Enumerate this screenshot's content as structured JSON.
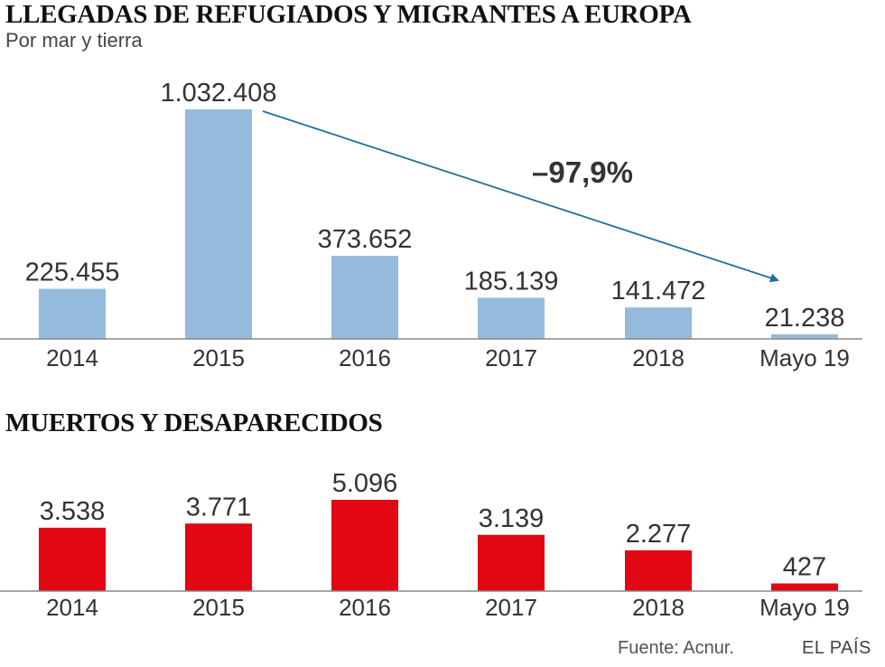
{
  "chart_data": [
    {
      "type": "bar",
      "title": "LLEGADAS DE REFUGIADOS Y MIGRANTES A EUROPA",
      "subtitle": "Por mar y tierra",
      "categories": [
        "2014",
        "2015",
        "2016",
        "2017",
        "2018",
        "Mayo 19"
      ],
      "values": [
        225455,
        1032408,
        373652,
        185139,
        141472,
        21238
      ],
      "value_labels": [
        "225.455",
        "1.032.408",
        "373.652",
        "185.139",
        "141.472",
        "21.238"
      ],
      "ylim": [
        0,
        1032408
      ],
      "annotation": {
        "text": "–97,9%",
        "from": "2015",
        "to": "Mayo 19"
      },
      "bar_color": "#94bbdc",
      "arrow_color": "#1f6f9a"
    },
    {
      "type": "bar",
      "title": "MUERTOS Y DESAPARECIDOS",
      "categories": [
        "2014",
        "2015",
        "2016",
        "2017",
        "2018",
        "Mayo 19"
      ],
      "values": [
        3538,
        3771,
        5096,
        3139,
        2277,
        427
      ],
      "value_labels": [
        "3.538",
        "3.771",
        "5.096",
        "3.139",
        "2.277",
        "427"
      ],
      "ylim": [
        0,
        5096
      ],
      "bar_color": "#e30613"
    }
  ],
  "footer": {
    "source": "Fuente: Acnur.",
    "brand": "EL PAÍS"
  }
}
